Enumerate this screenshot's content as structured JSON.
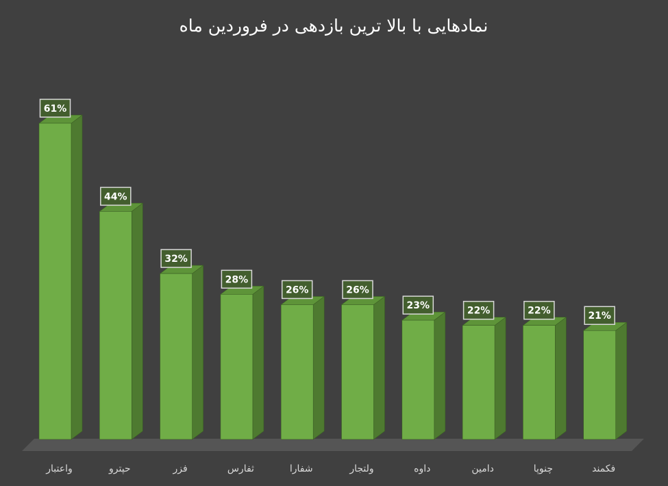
{
  "chart_data": {
    "type": "bar",
    "title": "نمادهایی با بالا ترین بازدهی در فروردین ماه",
    "categories": [
      "واعتبار",
      "حپترو",
      "فزر",
      "ثفارس",
      "شفارا",
      "ولتجار",
      "داوه",
      "دامین",
      "چنوپا",
      "فکمند"
    ],
    "values": [
      61,
      44,
      32,
      28,
      26,
      26,
      23,
      22,
      22,
      21
    ],
    "value_labels": [
      "61%",
      "44%",
      "32%",
      "28%",
      "26%",
      "26%",
      "23%",
      "22%",
      "22%",
      "21%"
    ],
    "unit": "%",
    "xlabel": "",
    "ylabel": "",
    "ylim": [
      0,
      70
    ],
    "grid": false,
    "legend": "none",
    "style": "3d-column"
  },
  "colors": {
    "background": "#404040",
    "bar_front": "#70AD47",
    "bar_side": "#4E7A30",
    "bar_top": "#5E9439",
    "floor": "#555555",
    "label_box": "#435E2E",
    "label_border": "#D9D9D9",
    "text": "#FFFFFF",
    "tick_text": "#D9D9D9"
  }
}
